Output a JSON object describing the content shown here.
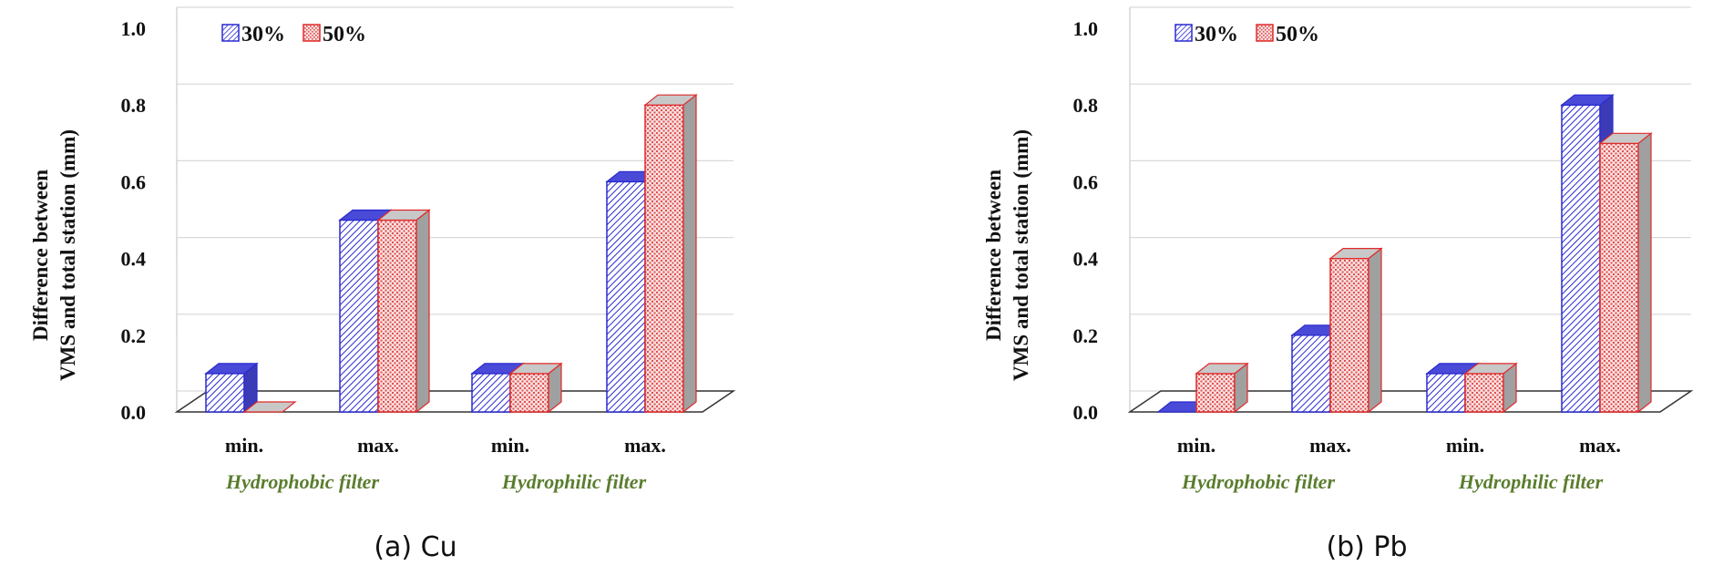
{
  "chart_data": [
    {
      "type": "bar",
      "caption": "(a) Cu",
      "ylabel_lines": [
        "Difference between",
        "VMS and total station (mm)"
      ],
      "ylim": [
        0,
        1.0
      ],
      "y_ticks": [
        "0.0",
        "0.2",
        "0.4",
        "0.6",
        "0.8",
        "1.0"
      ],
      "categories": [
        "min.",
        "max.",
        "min.",
        "max."
      ],
      "groups": [
        "Hydrophobic filter",
        "Hydrophilic filter"
      ],
      "series": [
        {
          "name": "30%",
          "values": [
            0.1,
            0.5,
            0.1,
            0.6
          ],
          "color": "#2a2ad0"
        },
        {
          "name": "50%",
          "values": [
            0.0,
            0.5,
            0.1,
            0.8
          ],
          "color": "#e02a2a"
        }
      ],
      "grid": true,
      "legend": "top-left"
    },
    {
      "type": "bar",
      "caption": "(b) Pb",
      "ylabel_lines": [
        "Difference between",
        "VMS and total station (mm)"
      ],
      "ylim": [
        0,
        1.0
      ],
      "y_ticks": [
        "0.0",
        "0.2",
        "0.4",
        "0.6",
        "0.8",
        "1.0"
      ],
      "categories": [
        "min.",
        "max.",
        "min.",
        "max."
      ],
      "groups": [
        "Hydrophobic filter",
        "Hydrophilic filter"
      ],
      "series": [
        {
          "name": "30%",
          "values": [
            0.0,
            0.2,
            0.1,
            0.8
          ],
          "color": "#2a2ad0"
        },
        {
          "name": "50%",
          "values": [
            0.1,
            0.4,
            0.1,
            0.7
          ],
          "color": "#e02a2a"
        }
      ],
      "grid": true,
      "legend": "top-left"
    }
  ]
}
